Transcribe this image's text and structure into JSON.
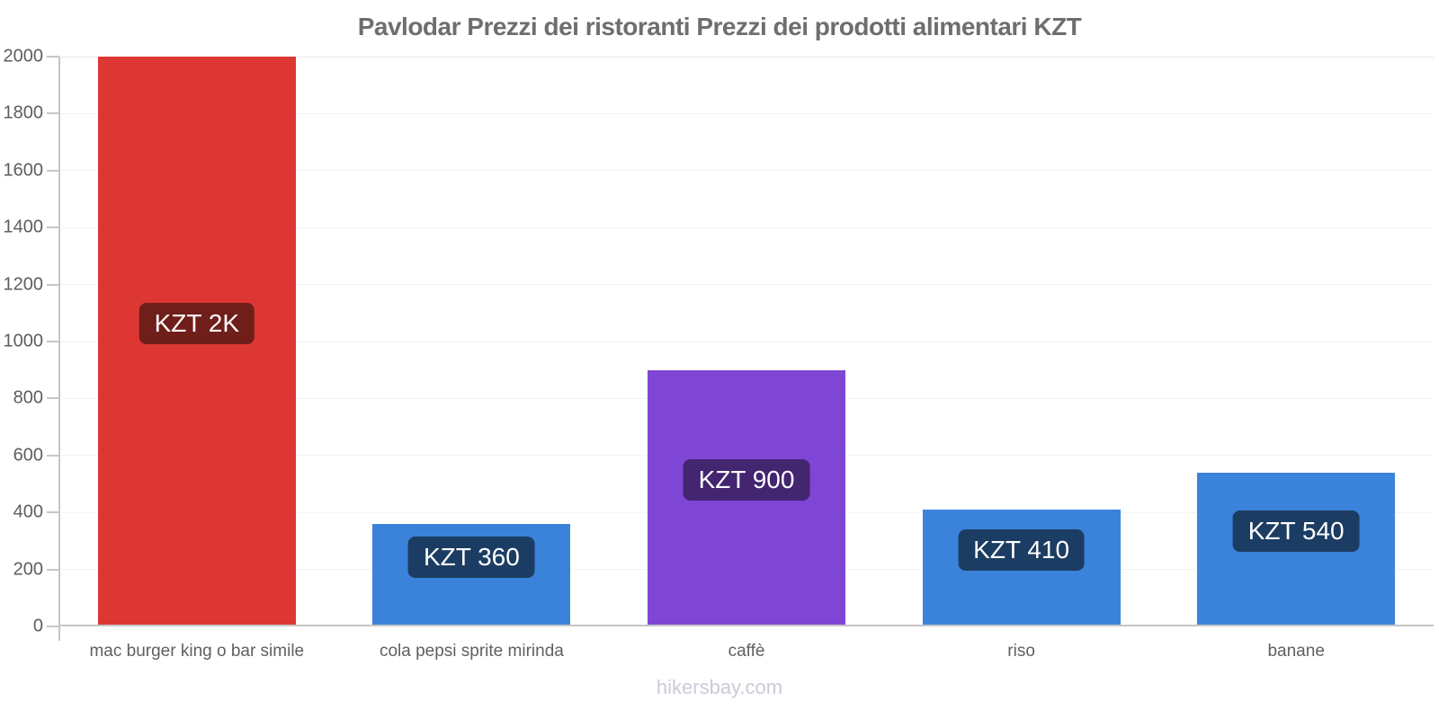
{
  "chart_data": {
    "type": "bar",
    "title": "Pavlodar Prezzi dei ristoranti Prezzi dei prodotti alimentari KZT",
    "categories": [
      "mac burger king o bar simile",
      "cola pepsi sprite mirinda",
      "caffè",
      "riso",
      "banane"
    ],
    "values": [
      2000,
      360,
      900,
      410,
      540
    ],
    "value_labels": [
      "KZT 2K",
      "KZT 360",
      "KZT 900",
      "KZT 410",
      "KZT 540"
    ],
    "bar_colors": [
      "#dd3733",
      "#3b83da",
      "#7f46d6",
      "#3b83da",
      "#3b83da"
    ],
    "value_label_box_colors": [
      "#701e19",
      "#1c3d63",
      "#432570",
      "#1c3d63",
      "#1c3d63"
    ],
    "xlabel": "",
    "ylabel": "",
    "ylim": [
      0,
      2000
    ],
    "yticks": [
      0,
      200,
      400,
      600,
      800,
      1000,
      1200,
      1400,
      1600,
      1800,
      2000
    ],
    "grid": true,
    "legend": false,
    "currency": "KZT"
  },
  "footer": {
    "watermark": "hikersbay.com"
  },
  "colors": {
    "background": "#ffffff",
    "title_text": "#6d6e70",
    "axis": "#c6c6c6",
    "gridline": "#f2f2f2",
    "y_tick_text": "#5c5d5f",
    "x_tick_text": "#5f6062",
    "value_label_text": "#ffffff",
    "watermark_text": "#c9ccd7"
  }
}
